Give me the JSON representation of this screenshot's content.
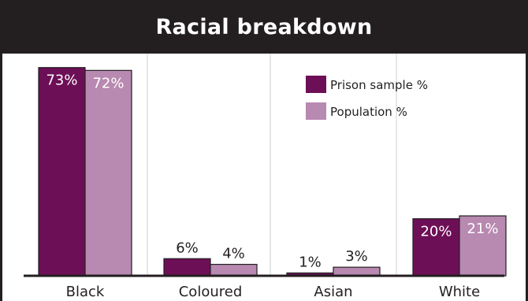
{
  "chart_data": {
    "type": "bar",
    "title": "Racial breakdown",
    "categories": [
      "Black",
      "Coloured",
      "Asian",
      "White"
    ],
    "series": [
      {
        "name": "Prison sample %",
        "values": [
          73,
          6,
          1,
          20
        ],
        "labels": [
          "73%",
          "6%",
          "1%",
          "20%"
        ],
        "color": "#6d0f57"
      },
      {
        "name": "Population %",
        "values": [
          72,
          4,
          3,
          21
        ],
        "labels": [
          "72%",
          "4%",
          "3%",
          "21%"
        ],
        "color": "#b889b1"
      }
    ],
    "ylim": [
      0,
      75
    ],
    "grid": "vertical separators",
    "legend": "top-right"
  }
}
